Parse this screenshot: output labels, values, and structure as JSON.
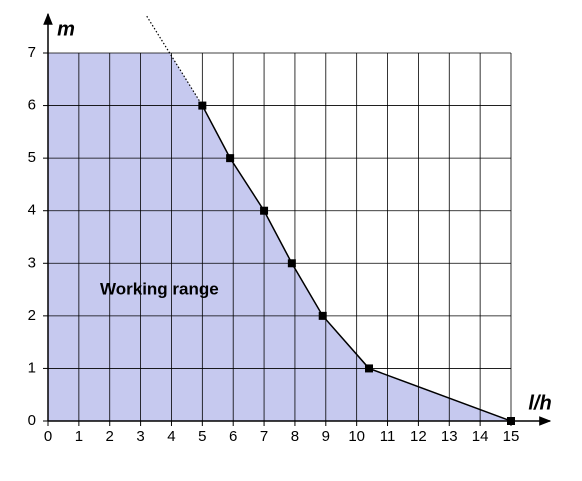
{
  "chart_data": {
    "type": "line",
    "x_label": "l/h",
    "y_label": "m",
    "annotation": "Working range",
    "series": [
      {
        "x": [
          5,
          5.9,
          7,
          7.9,
          8.9,
          10.4,
          15
        ],
        "values": [
          6,
          5,
          4,
          3,
          2,
          1,
          0
        ],
        "color": "#000000",
        "marker": "square",
        "fill": "#c6c9ef"
      },
      {
        "x": [
          3.2,
          5
        ],
        "values": [
          7.7,
          6
        ],
        "color": "#000000",
        "dash": "dotted"
      }
    ],
    "xlim": [
      0,
      15
    ],
    "ylim": [
      0,
      7
    ],
    "xticks": [
      0,
      1,
      2,
      3,
      4,
      5,
      6,
      7,
      8,
      9,
      10,
      11,
      12,
      13,
      14,
      15
    ],
    "yticks": [
      0,
      1,
      2,
      3,
      4,
      5,
      6,
      7
    ],
    "grid": true
  }
}
